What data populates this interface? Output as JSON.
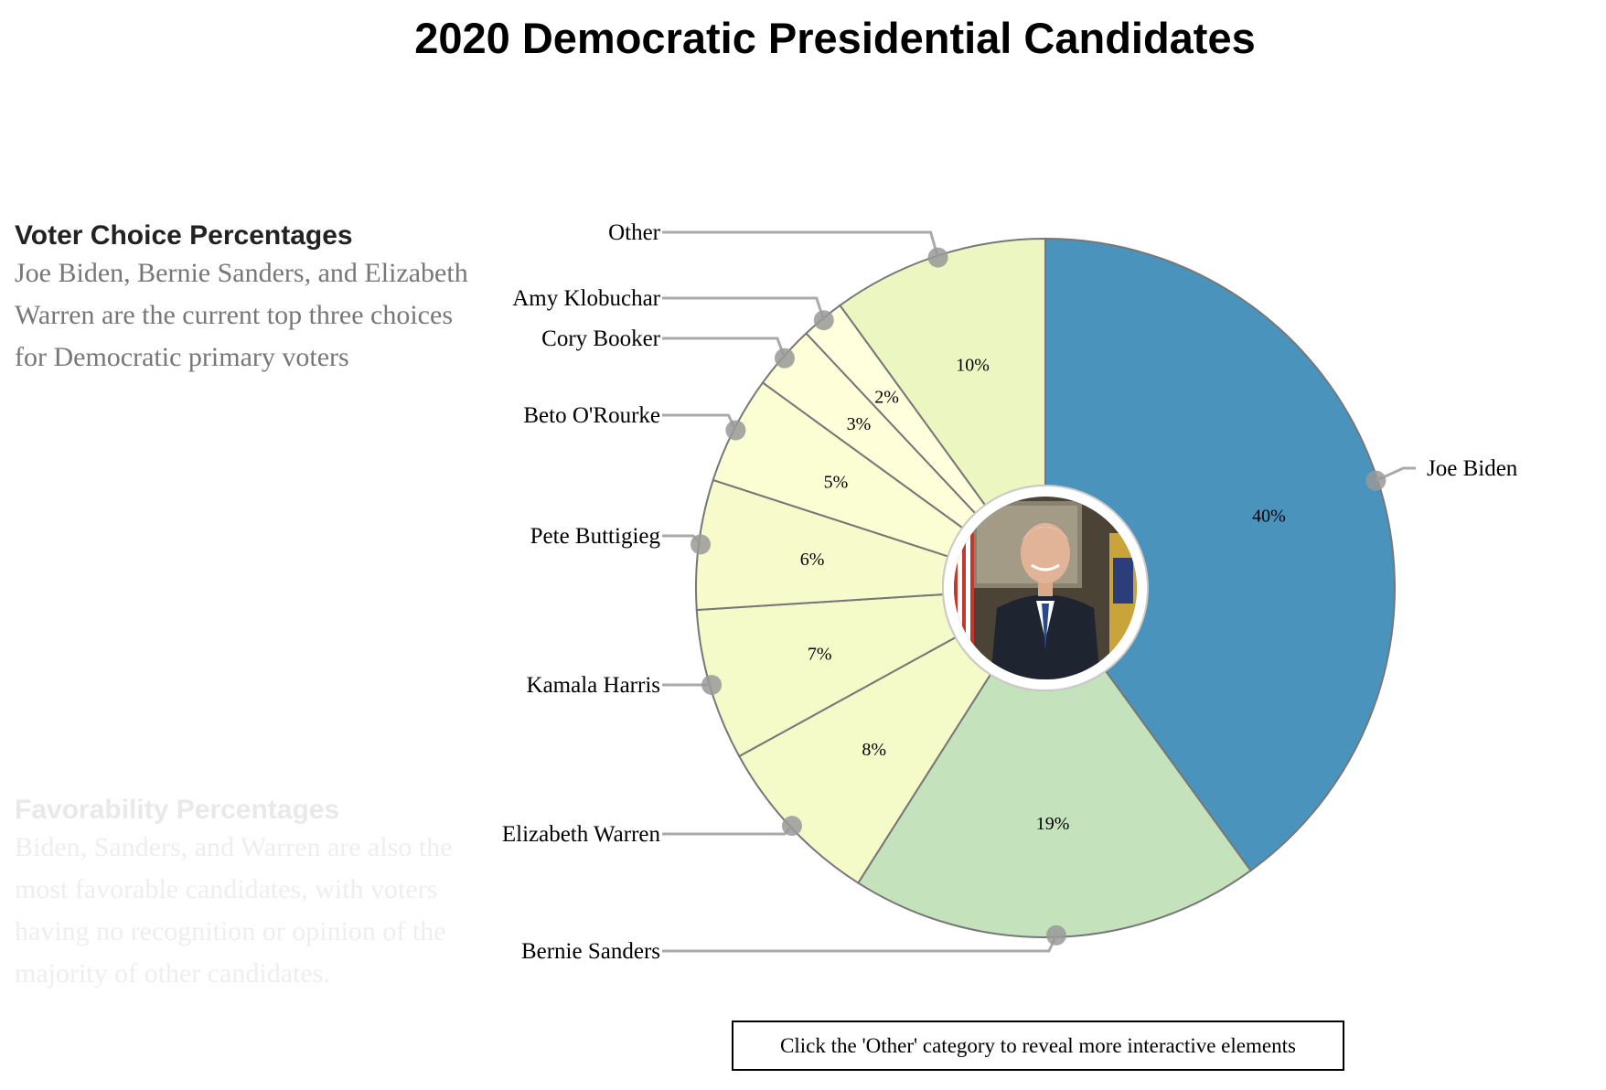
{
  "page": {
    "title": "2020 Democratic Presidential Candidates",
    "hint": "Click the 'Other' category to reveal more interactive elements"
  },
  "sidebar": {
    "voter": {
      "heading": "Voter Choice Percentages",
      "body": "Joe Biden, Bernie Sanders, and Elizabeth Warren are the current top three choices for Democratic primary voters"
    },
    "favorability": {
      "heading": "Favorability Percentages",
      "body": "Biden, Sanders, and Warren are also the most favorable candidates, with voters having no recognition or opinion of the majority of other candidates."
    }
  },
  "center_image": {
    "icon": "candidate-portrait-joe-biden"
  },
  "chart_data": {
    "type": "pie",
    "title": "2020 Democratic Presidential Candidates",
    "donut": true,
    "series": [
      {
        "name": "Joe Biden",
        "label": "40%",
        "value": 40,
        "color": "#4a93bd"
      },
      {
        "name": "Bernie Sanders",
        "label": "19%",
        "value": 19,
        "color": "#c4e2bc"
      },
      {
        "name": "Elizabeth Warren",
        "label": "8%",
        "value": 8,
        "color": "#f5fac9"
      },
      {
        "name": "Kamala Harris",
        "label": "7%",
        "value": 7,
        "color": "#f5fac9"
      },
      {
        "name": "Pete Buttigieg",
        "label": "6%",
        "value": 6,
        "color": "#f7fbcb"
      },
      {
        "name": "Beto O'Rourke",
        "label": "5%",
        "value": 5,
        "color": "#fbfdd3"
      },
      {
        "name": "Cory Booker",
        "label": "3%",
        "value": 3,
        "color": "#fefed9"
      },
      {
        "name": "Amy Klobuchar",
        "label": "2%",
        "value": 2,
        "color": "#ffffdd"
      },
      {
        "name": "Other",
        "label": "10%",
        "value": 10,
        "color": "#ebf6c0"
      }
    ]
  }
}
